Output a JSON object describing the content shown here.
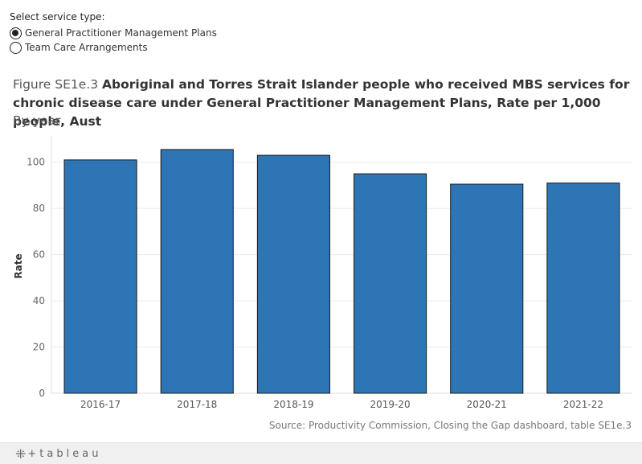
{
  "filter": {
    "title": "Select service type:",
    "options": [
      {
        "label": "General Practitioner Management Plans",
        "selected": true
      },
      {
        "label": "Team Care Arrangements",
        "selected": false
      }
    ]
  },
  "header": {
    "figure_prefix": "Figure SE1e.3",
    "title": "Aboriginal and Torres Strait Islander people who received MBS services for chronic disease care under General Practitioner Management Plans, Rate per 1,000 people, Aust",
    "subtitle": "By year"
  },
  "chart_data": {
    "type": "bar",
    "categories": [
      "2016-17",
      "2017-18",
      "2018-19",
      "2019-20",
      "2020-21",
      "2021-22"
    ],
    "values": [
      101,
      105.5,
      103,
      95,
      90.5,
      91
    ],
    "ylabel": "Rate",
    "xlabel": "",
    "ylim": [
      0,
      110
    ],
    "yticks": [
      0,
      20,
      40,
      60,
      80,
      100
    ],
    "bar_color": "#2e75b6",
    "grid": true
  },
  "source": "Source: Productivity Commission, Closing the Gap dashboard, table SE1e.3",
  "footer": {
    "brand": "tableau"
  }
}
